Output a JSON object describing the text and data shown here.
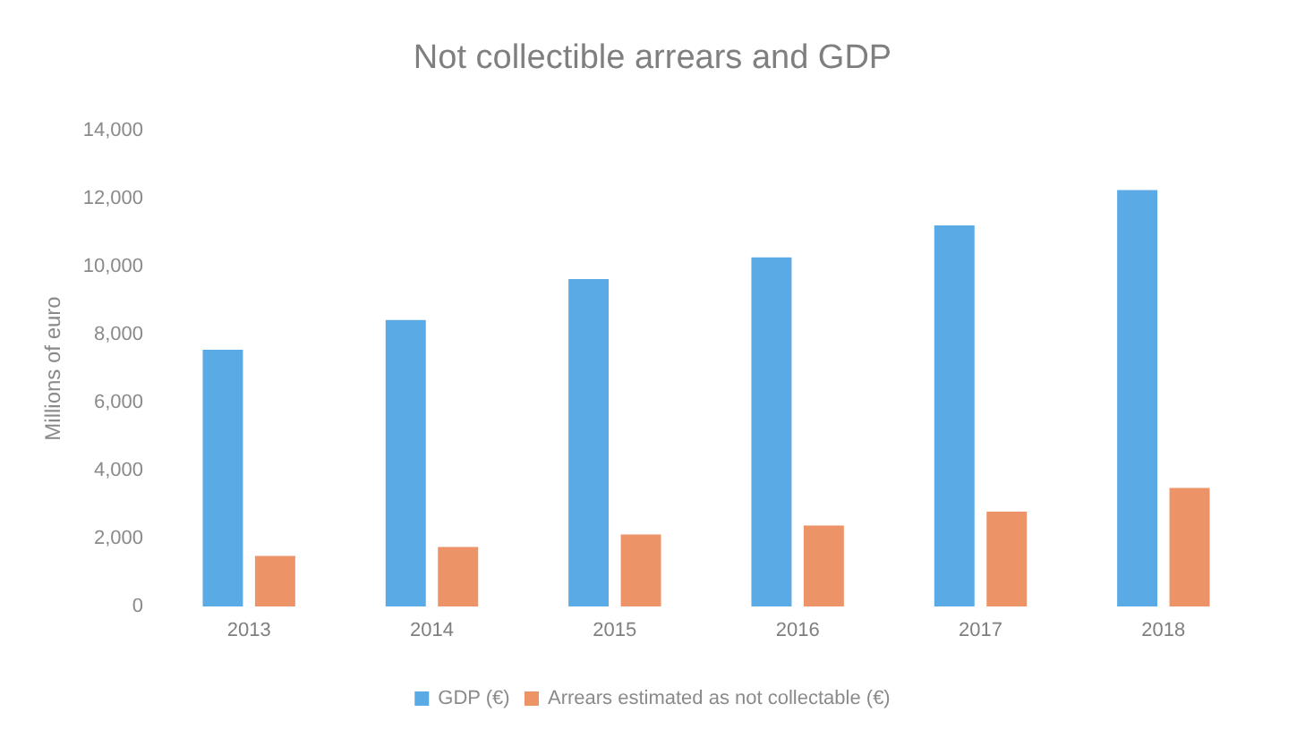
{
  "chart_data": {
    "type": "bar",
    "title": "Not collectible arrears and GDP",
    "ylabel": "Millions of euro",
    "categories": [
      "2013",
      "2014",
      "2015",
      "2016",
      "2017",
      "2018"
    ],
    "series": [
      {
        "name": "GDP (€)",
        "color": "#5aaae6",
        "values": [
          7550,
          8430,
          9630,
          10270,
          11210,
          12250
        ]
      },
      {
        "name": "Arrears estimated as not collectable (€)",
        "color": "#ec9468",
        "values": [
          1490,
          1750,
          2120,
          2380,
          2790,
          3490
        ]
      }
    ],
    "ylim": [
      0,
      14000
    ],
    "yticks": [
      0,
      {
        "value": 2000,
        "label": "2,000"
      },
      {
        "value": 4000,
        "label": "4,000"
      },
      {
        "value": 6000,
        "label": "6,000"
      },
      {
        "value": 8000,
        "label": "8,000"
      },
      {
        "value": 10000,
        "label": "10,000"
      },
      {
        "value": 12000,
        "label": "12,000"
      },
      {
        "value": 14000,
        "label": "14,000"
      }
    ],
    "grid": false,
    "legend": "bottom"
  }
}
